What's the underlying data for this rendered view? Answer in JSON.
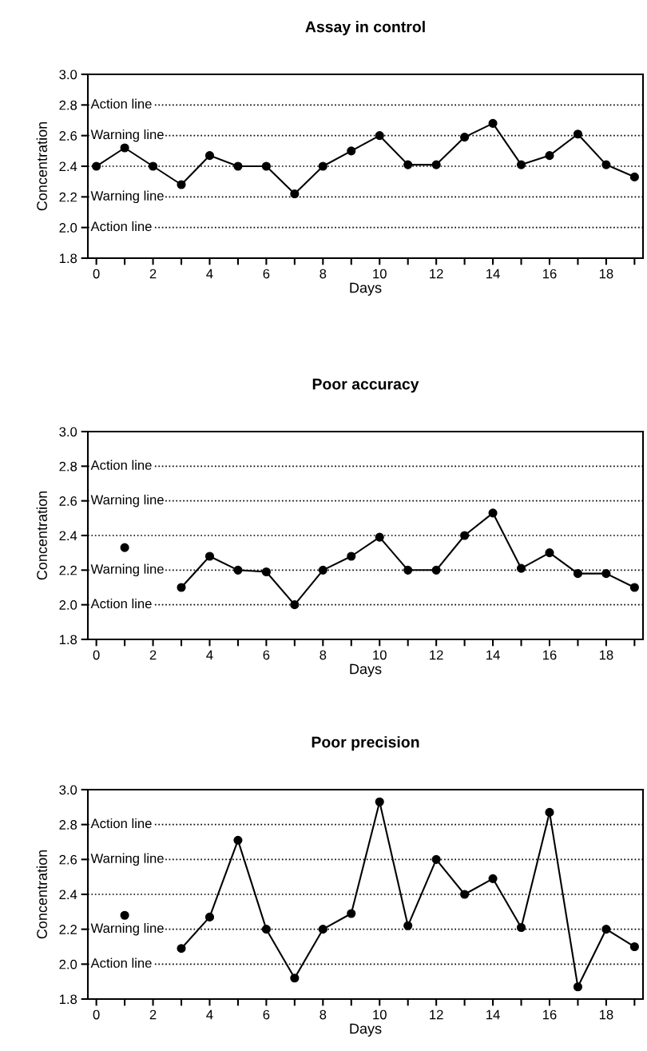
{
  "chart_data": [
    {
      "type": "line",
      "title": "Assay in control",
      "xlabel": "Days",
      "ylabel": "Concentration",
      "x": [
        0,
        1,
        2,
        3,
        4,
        5,
        6,
        7,
        8,
        9,
        10,
        11,
        12,
        13,
        14,
        15,
        16,
        17,
        18,
        19
      ],
      "series": [
        {
          "color": "#000000",
          "values": [
            2.4,
            2.52,
            2.4,
            2.28,
            2.47,
            2.4,
            2.4,
            2.22,
            2.4,
            2.5,
            2.6,
            2.41,
            2.41,
            2.59,
            2.68,
            2.41,
            2.47,
            2.61,
            2.41,
            2.33
          ]
        }
      ],
      "marker": "circle",
      "line_style": "solid",
      "xlim": [
        -0.3,
        19.3
      ],
      "ylim": [
        1.8,
        3.0
      ],
      "xticks": [
        0,
        {
          "value": 1,
          "label": null
        },
        2,
        {
          "value": 3,
          "label": null
        },
        4,
        {
          "value": 5,
          "label": null
        },
        6,
        {
          "value": 7,
          "label": null
        },
        8,
        {
          "value": 9,
          "label": null
        },
        10,
        {
          "value": 11,
          "label": null
        },
        12,
        {
          "value": 13,
          "label": null
        },
        14,
        {
          "value": 15,
          "label": null
        },
        16,
        {
          "value": 17,
          "label": null
        },
        18,
        {
          "value": 19,
          "label": null
        }
      ],
      "yticks": [
        {
          "value": 1.8,
          "label": "1.8"
        },
        {
          "value": 2.0,
          "label": "2.0"
        },
        {
          "value": 2.2,
          "label": "2.2"
        },
        {
          "value": 2.4,
          "label": "2.4"
        },
        {
          "value": 2.6,
          "label": "2.6"
        },
        {
          "value": 2.8,
          "label": "2.8"
        },
        {
          "value": 3.0,
          "label": "3.0"
        }
      ],
      "ref_lines": [
        {
          "axis": "y",
          "value": 2.8,
          "label": "Action line",
          "line_style": "dotted"
        },
        {
          "axis": "y",
          "value": 2.6,
          "label": "Warning line",
          "line_style": "dotted"
        },
        {
          "axis": "y",
          "value": 2.4,
          "line_style": "dotted"
        },
        {
          "axis": "y",
          "value": 2.2,
          "label": "Warning line",
          "line_style": "dotted"
        },
        {
          "axis": "y",
          "value": 2.0,
          "label": "Action line",
          "line_style": "dotted"
        }
      ]
    },
    {
      "type": "line",
      "title": "Poor accuracy",
      "xlabel": "Days",
      "ylabel": "Concentration",
      "x": [
        1,
        2,
        3,
        4,
        5,
        6,
        7,
        8,
        9,
        10,
        11,
        12,
        13,
        14,
        15,
        16,
        17,
        18,
        19
      ],
      "series": [
        {
          "color": "#000000",
          "values": [
            2.33,
            null,
            2.1,
            2.28,
            2.2,
            2.19,
            2.0,
            2.2,
            2.28,
            2.39,
            2.2,
            2.2,
            2.4,
            2.53,
            2.21,
            2.3,
            2.18,
            2.18,
            2.1
          ]
        }
      ],
      "marker": "circle",
      "line_style": "solid",
      "xlim": [
        -0.3,
        19.3
      ],
      "ylim": [
        1.8,
        3.0
      ],
      "xticks": [
        0,
        {
          "value": 1,
          "label": null
        },
        2,
        {
          "value": 3,
          "label": null
        },
        4,
        {
          "value": 5,
          "label": null
        },
        6,
        {
          "value": 7,
          "label": null
        },
        8,
        {
          "value": 9,
          "label": null
        },
        10,
        {
          "value": 11,
          "label": null
        },
        12,
        {
          "value": 13,
          "label": null
        },
        14,
        {
          "value": 15,
          "label": null
        },
        16,
        {
          "value": 17,
          "label": null
        },
        18,
        {
          "value": 19,
          "label": null
        }
      ],
      "yticks": [
        {
          "value": 1.8,
          "label": "1.8"
        },
        {
          "value": 2.0,
          "label": "2.0"
        },
        {
          "value": 2.2,
          "label": "2.2"
        },
        {
          "value": 2.4,
          "label": "2.4"
        },
        {
          "value": 2.6,
          "label": "2.6"
        },
        {
          "value": 2.8,
          "label": "2.8"
        },
        {
          "value": 3.0,
          "label": "3.0"
        }
      ],
      "ref_lines": [
        {
          "axis": "y",
          "value": 2.8,
          "label": "Action line",
          "line_style": "dotted"
        },
        {
          "axis": "y",
          "value": 2.6,
          "label": "Warning line",
          "line_style": "dotted"
        },
        {
          "axis": "y",
          "value": 2.4,
          "line_style": "dotted"
        },
        {
          "axis": "y",
          "value": 2.2,
          "label": "Warning line",
          "line_style": "dotted"
        },
        {
          "axis": "y",
          "value": 2.0,
          "label": "Action line",
          "line_style": "dotted"
        }
      ]
    },
    {
      "type": "line",
      "title": "Poor precision",
      "xlabel": "Days",
      "ylabel": "Concentration",
      "x": [
        1,
        2,
        3,
        4,
        5,
        6,
        7,
        8,
        9,
        10,
        11,
        12,
        13,
        14,
        15,
        16,
        17,
        18,
        19
      ],
      "series": [
        {
          "color": "#000000",
          "values": [
            2.28,
            null,
            2.09,
            2.27,
            2.71,
            2.2,
            1.92,
            2.2,
            2.29,
            2.93,
            2.22,
            2.6,
            2.4,
            2.49,
            2.21,
            2.87,
            1.87,
            2.2,
            2.1
          ]
        }
      ],
      "marker": "circle",
      "line_style": "solid",
      "xlim": [
        -0.3,
        19.3
      ],
      "ylim": [
        1.8,
        3.0
      ],
      "xticks": [
        0,
        {
          "value": 1,
          "label": null
        },
        2,
        {
          "value": 3,
          "label": null
        },
        4,
        {
          "value": 5,
          "label": null
        },
        6,
        {
          "value": 7,
          "label": null
        },
        8,
        {
          "value": 9,
          "label": null
        },
        10,
        {
          "value": 11,
          "label": null
        },
        12,
        {
          "value": 13,
          "label": null
        },
        14,
        {
          "value": 15,
          "label": null
        },
        16,
        {
          "value": 17,
          "label": null
        },
        18,
        {
          "value": 19,
          "label": null
        }
      ],
      "yticks": [
        {
          "value": 1.8,
          "label": "1.8"
        },
        {
          "value": 2.0,
          "label": "2.0"
        },
        {
          "value": 2.2,
          "label": "2.2"
        },
        {
          "value": 2.4,
          "label": "2.4"
        },
        {
          "value": 2.6,
          "label": "2.6"
        },
        {
          "value": 2.8,
          "label": "2.8"
        },
        {
          "value": 3.0,
          "label": "3.0"
        }
      ],
      "ref_lines": [
        {
          "axis": "y",
          "value": 2.8,
          "label": "Action line",
          "line_style": "dotted"
        },
        {
          "axis": "y",
          "value": 2.6,
          "label": "Warning line",
          "line_style": "dotted"
        },
        {
          "axis": "y",
          "value": 2.4,
          "line_style": "dotted"
        },
        {
          "axis": "y",
          "value": 2.2,
          "label": "Warning line",
          "line_style": "dotted"
        },
        {
          "axis": "y",
          "value": 2.0,
          "label": "Action line",
          "line_style": "dotted"
        }
      ]
    }
  ]
}
